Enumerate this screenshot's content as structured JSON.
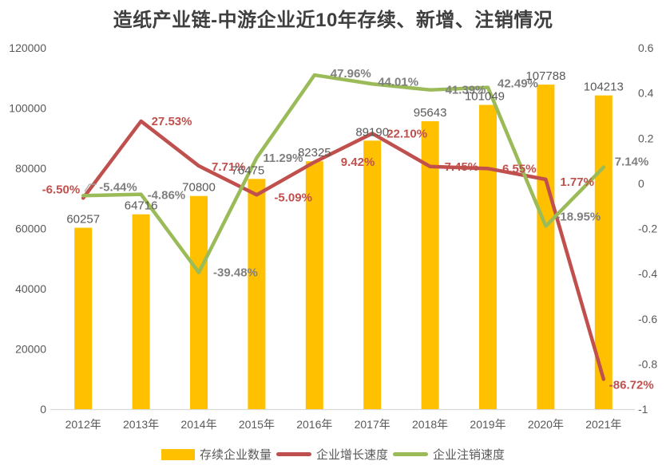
{
  "title": "造纸产业链-中游企业近10年存续、新增、注销情况",
  "chart_data": {
    "type": "combo-bar-line",
    "categories": [
      "2012年",
      "2013年",
      "2014年",
      "2015年",
      "2016年",
      "2017年",
      "2018年",
      "2019年",
      "2020年",
      "2021年"
    ],
    "series": [
      {
        "name": "存续企业数量",
        "type": "bar",
        "axis": "left",
        "color": "#FFC000",
        "values": [
          60257,
          64716,
          70800,
          76475,
          82325,
          89190,
          95643,
          101049,
          107788,
          104213
        ],
        "labels": [
          "60257",
          "64716",
          "70800",
          "76475",
          "82325",
          "89190",
          "95643",
          "101049",
          "107788",
          "104213"
        ],
        "label_color": "#595959"
      },
      {
        "name": "企业增长速度",
        "type": "line",
        "axis": "right",
        "color": "#C0504D",
        "values_pct": [
          -6.5,
          27.53,
          7.71,
          -5.09,
          9.42,
          22.1,
          7.45,
          6.55,
          1.77,
          -86.72
        ],
        "labels": [
          "-6.50%",
          "27.53%",
          "7.71%",
          "-5.09%",
          "9.42%",
          "22.10%",
          "7.45%",
          "6.55%",
          "1.77%",
          "-86.72%"
        ],
        "label_color": "#C0504D"
      },
      {
        "name": "企业注销速度",
        "type": "line",
        "axis": "right",
        "color": "#9BBB59",
        "values_pct": [
          -5.44,
          -4.86,
          -39.48,
          11.29,
          47.96,
          44.01,
          41.39,
          42.49,
          -18.95,
          7.14
        ],
        "labels": [
          "-5.44%",
          "-4.86%",
          "-39.48%",
          "11.29%",
          "47.96%",
          "44.01%",
          "41.39%",
          "42.49%",
          "-18.95%",
          "7.14%"
        ],
        "label_color": "#7F7F7F"
      }
    ],
    "left_axis": {
      "min": 0,
      "max": 120000,
      "ticks": [
        "0",
        "20000",
        "40000",
        "60000",
        "80000",
        "100000",
        "120000"
      ]
    },
    "right_axis": {
      "min": -1,
      "max": 0.6,
      "ticks": [
        "0.6",
        "0.4",
        "0.2",
        "0",
        "-0.2",
        "-0.4",
        "-0.6",
        "-0.8",
        "-1"
      ]
    },
    "grid": false,
    "legend_position": "bottom",
    "background": "#FFFFFF"
  }
}
